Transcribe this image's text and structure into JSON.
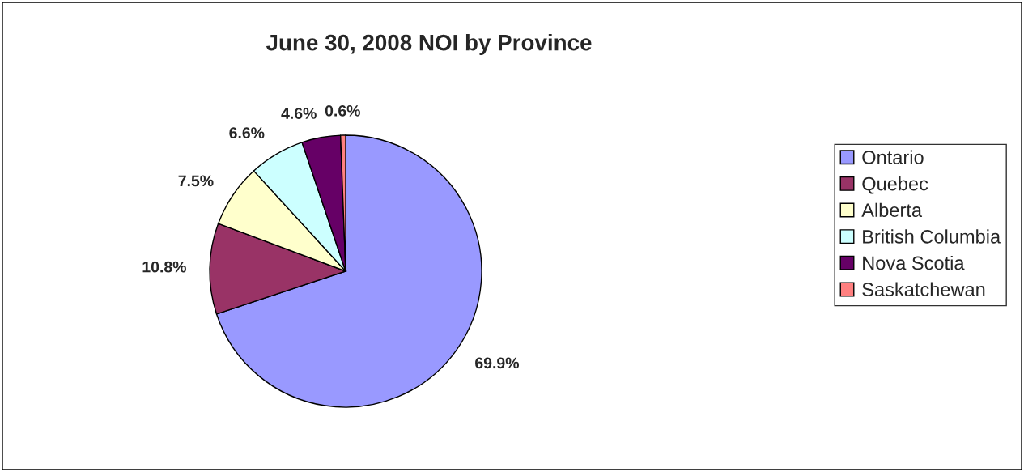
{
  "chart_data": {
    "type": "pie",
    "title": "June 30, 2008 NOI by Province",
    "categories": [
      "Ontario",
      "Quebec",
      "Alberta",
      "British Columbia",
      "Nova Scotia",
      "Saskatchewan"
    ],
    "values": [
      69.9,
      10.8,
      7.5,
      6.6,
      4.6,
      0.6
    ],
    "value_labels": [
      "69.9%",
      "10.8%",
      "7.5%",
      "6.6%",
      "4.6%",
      "0.6%"
    ],
    "colors": [
      "#9999ff",
      "#993366",
      "#ffffcc",
      "#ccffff",
      "#660066",
      "#ff8080"
    ],
    "legend": "right"
  }
}
